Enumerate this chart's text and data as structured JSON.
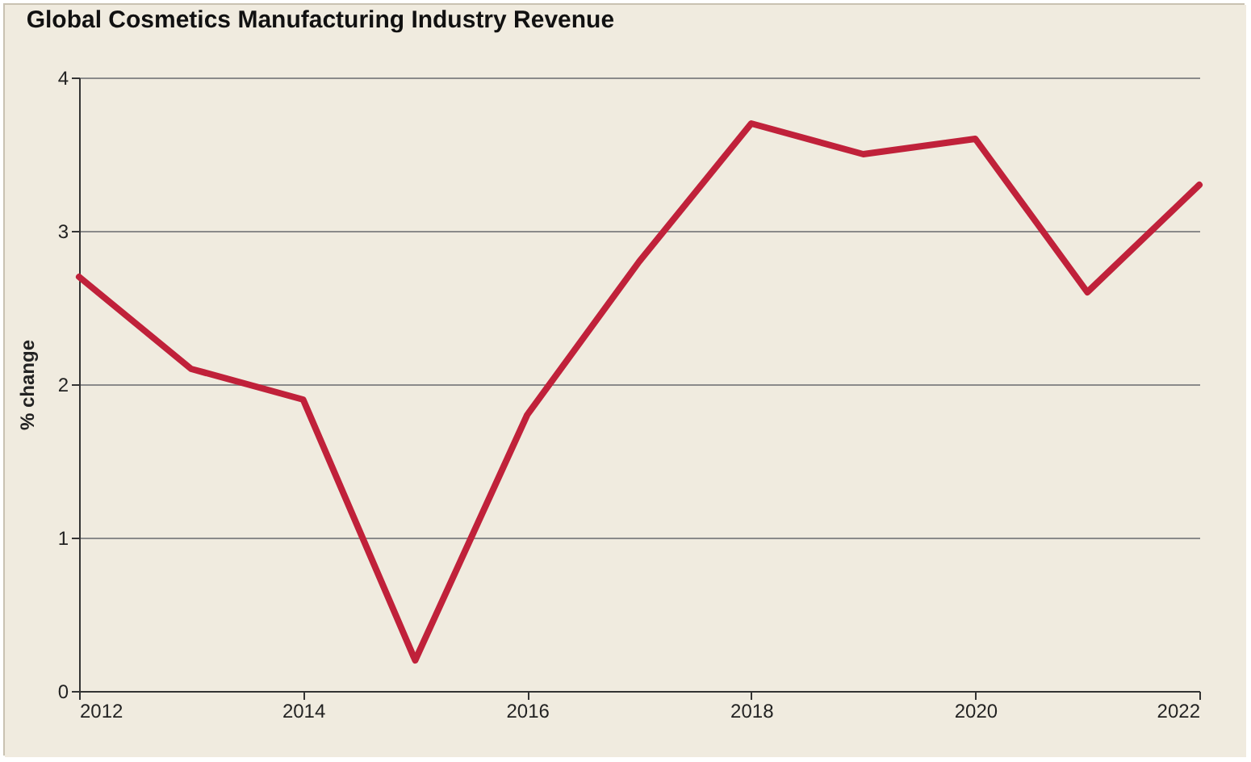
{
  "chart_data": {
    "type": "line",
    "title": "Global Cosmetics Manufacturing Industry Revenue",
    "ylabel": "% change",
    "x": [
      2012,
      2013,
      2014,
      2015,
      2016,
      2017,
      2018,
      2019,
      2020,
      2021,
      2022
    ],
    "series": [
      {
        "color": "#c0213a",
        "values": [
          2.7,
          2.1,
          1.9,
          0.2,
          1.8,
          2.8,
          3.7,
          3.5,
          3.6,
          2.6,
          3.3
        ]
      }
    ],
    "xlim": [
      2012,
      2022
    ],
    "xticks": [
      2012,
      2014,
      2016,
      2018,
      2020,
      2022
    ],
    "ylim": [
      0,
      4
    ],
    "yticks": [
      0,
      1,
      2,
      3,
      4
    ],
    "grid": "y",
    "marker": "none",
    "line_style": "solid"
  }
}
